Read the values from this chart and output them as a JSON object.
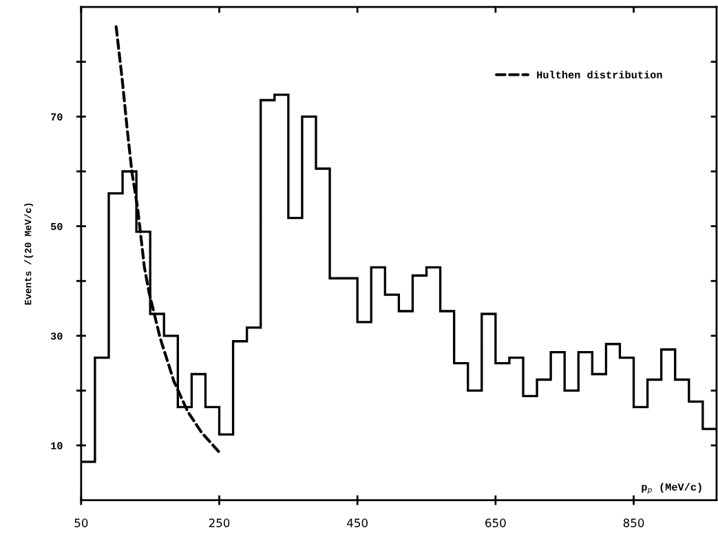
{
  "chart_data": {
    "type": "histogram",
    "ylabel": "Events /(20 MeV/c)",
    "xlabel": "p$_{p}$ (MeV/c)",
    "xlim": [
      50,
      970
    ],
    "xticks": [
      50,
      250,
      450,
      650,
      850
    ],
    "ylim": [
      0,
      90
    ],
    "yticks": [
      10,
      {
        "value": 20,
        "label": null
      },
      30,
      {
        "value": 40,
        "label": null
      },
      50,
      {
        "value": 60,
        "label": null
      },
      70,
      {
        "value": 80,
        "label": null
      }
    ],
    "grid": false,
    "legend": "top right",
    "series": [
      {
        "type": "histogram",
        "color": "#000000",
        "bins": [
          50,
          70,
          90,
          110,
          130,
          150,
          170,
          190,
          210,
          230,
          250,
          270,
          290,
          310,
          330,
          350,
          370,
          390,
          410,
          430,
          450,
          470,
          490,
          510,
          530,
          550,
          570,
          590,
          610,
          630,
          650,
          670,
          690,
          710,
          730,
          750,
          770,
          790,
          810,
          830,
          850,
          870,
          890,
          910,
          930,
          950,
          970
        ],
        "values": [
          7,
          26,
          56,
          60,
          49,
          34,
          30,
          17,
          23,
          17,
          12,
          29,
          31.5,
          73,
          74,
          51.5,
          70,
          60.5,
          40.5,
          40.5,
          32.5,
          42.5,
          37.5,
          34.5,
          41,
          42.5,
          34.5,
          25,
          20,
          34,
          25,
          26,
          19,
          22,
          27,
          20,
          27,
          23,
          28.5,
          26,
          17,
          22,
          27.5,
          22,
          18,
          13
        ]
      },
      {
        "type": "line",
        "name": "Hulthen distribution",
        "color": "#000000",
        "line_style": "dashed",
        "x": [
          100.7,
          109.7,
          116.7,
          123.6,
          131.6,
          141.5,
          148.2,
          164.4,
          184.3,
          204.2,
          224.1,
          249
        ],
        "values": [
          86.4,
          76.5,
          67.7,
          59.8,
          53.5,
          42.6,
          38,
          29.6,
          21.7,
          16.2,
          12.4,
          8.9
        ]
      }
    ]
  }
}
